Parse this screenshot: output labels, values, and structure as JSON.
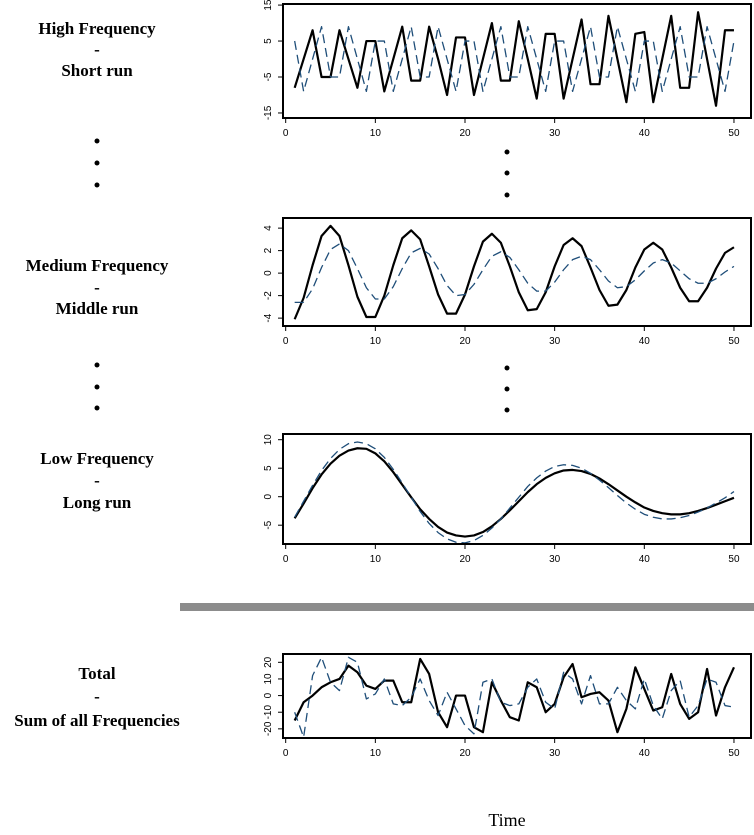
{
  "chart_data": [
    {
      "type": "line",
      "title": [
        "High Frequency",
        "-",
        "Short run"
      ],
      "x": [
        1,
        2,
        3,
        4,
        5,
        6,
        7,
        8,
        9,
        10,
        11,
        12,
        13,
        14,
        15,
        16,
        17,
        18,
        19,
        20,
        21,
        22,
        23,
        24,
        25,
        26,
        27,
        28,
        29,
        30,
        31,
        32,
        33,
        34,
        35,
        36,
        37,
        38,
        39,
        40,
        41,
        42,
        43,
        44,
        45,
        46,
        47,
        48,
        49,
        50
      ],
      "series": [
        {
          "color": "#000000",
          "style": "solid",
          "values": [
            -8,
            0,
            8,
            -5,
            -5,
            8,
            0,
            -8,
            5,
            5,
            -9,
            0,
            9,
            -6,
            -6,
            9,
            0,
            -10,
            6,
            6,
            -10,
            0,
            10,
            -6,
            -6,
            10.5,
            0,
            -11,
            7,
            7,
            -11,
            0,
            11,
            -7,
            -7,
            12,
            0,
            -12,
            7,
            7.5,
            -12,
            0,
            12,
            -8,
            -8,
            13,
            0,
            -13,
            8,
            8
          ]
        },
        {
          "color": "#1f4e79",
          "style": "dashed",
          "values": [
            5,
            -9,
            0,
            9,
            -5,
            -5,
            9,
            0,
            -9,
            5,
            5,
            -9,
            0,
            9,
            -5,
            -5,
            9,
            0,
            -9,
            5,
            5,
            -9,
            0,
            9,
            -5,
            -5,
            9,
            0,
            -9,
            5,
            5,
            -9,
            0,
            9,
            -5,
            -5,
            9,
            0,
            -9,
            5,
            5,
            -9,
            0,
            9,
            -5,
            -5,
            9,
            0,
            -9,
            5
          ]
        }
      ],
      "xlim": [
        -0.3,
        51.9
      ],
      "xticks": [
        0,
        10,
        20,
        30,
        40,
        50
      ],
      "ylim": [
        -16.4,
        15.3
      ],
      "yticks": [
        -15,
        -5,
        5,
        15
      ]
    },
    {
      "type": "line",
      "title": [
        "Medium Frequency",
        "-",
        "Middle run"
      ],
      "x": [
        1,
        2,
        3,
        4,
        5,
        6,
        7,
        8,
        9,
        10,
        11,
        12,
        13,
        14,
        15,
        16,
        17,
        18,
        19,
        20,
        21,
        22,
        23,
        24,
        25,
        26,
        27,
        28,
        29,
        30,
        31,
        32,
        33,
        34,
        35,
        36,
        37,
        38,
        39,
        40,
        41,
        42,
        43,
        44,
        45,
        46,
        47,
        48,
        49,
        50
      ],
      "series": [
        {
          "color": "#000000",
          "style": "solid",
          "values": [
            -4.1,
            -2.2,
            0.7,
            3.3,
            4.2,
            3.3,
            0.7,
            -2.1,
            -3.9,
            -3.9,
            -2.0,
            0.7,
            3.1,
            3.8,
            3.0,
            0.6,
            -1.9,
            -3.6,
            -3.6,
            -1.9,
            0.6,
            2.8,
            3.5,
            2.7,
            0.6,
            -1.7,
            -3.3,
            -3.2,
            -1.7,
            0.6,
            2.5,
            3.1,
            2.4,
            0.5,
            -1.5,
            -2.9,
            -2.8,
            -1.5,
            0.5,
            2.1,
            2.7,
            2.1,
            0.5,
            -1.3,
            -2.5,
            -2.5,
            -1.3,
            0.4,
            1.8,
            2.3
          ]
        },
        {
          "color": "#1f4e79",
          "style": "dashed",
          "values": [
            -2.6,
            -2.6,
            -1.4,
            0.5,
            2.1,
            2.6,
            2.0,
            0.4,
            -1.3,
            -2.3,
            -2.3,
            -1.2,
            0.4,
            1.8,
            2.2,
            1.7,
            0.4,
            -1.1,
            -2.0,
            -1.9,
            -1.0,
            0.3,
            1.5,
            1.9,
            1.4,
            0.3,
            -0.9,
            -1.6,
            -1.6,
            -0.8,
            0.3,
            1.2,
            1.5,
            1.2,
            0.3,
            -0.7,
            -1.3,
            -1.2,
            -0.6,
            0.2,
            0.9,
            1.2,
            0.9,
            0.2,
            -0.5,
            -0.9,
            -0.9,
            -0.5,
            0.1,
            0.6
          ]
        }
      ],
      "xlim": [
        -0.3,
        51.9
      ],
      "xticks": [
        0,
        10,
        20,
        30,
        40,
        50
      ],
      "ylim": [
        -4.7,
        4.9
      ],
      "yticks": [
        -4,
        -2,
        0,
        2,
        4
      ]
    },
    {
      "type": "line",
      "title": [
        "Low Frequency",
        "-",
        "Long run"
      ],
      "x": [
        1,
        2,
        3,
        4,
        5,
        6,
        7,
        8,
        9,
        10,
        11,
        12,
        13,
        14,
        15,
        16,
        17,
        18,
        19,
        20,
        21,
        22,
        23,
        24,
        25,
        26,
        27,
        28,
        29,
        30,
        31,
        32,
        33,
        34,
        35,
        36,
        37,
        38,
        39,
        40,
        41,
        42,
        43,
        44,
        45,
        46,
        47,
        48,
        49,
        50
      ],
      "series": [
        {
          "color": "#000000",
          "style": "solid",
          "values": [
            -3.8,
            -1.2,
            1.5,
            3.9,
            5.8,
            7.2,
            8.1,
            8.5,
            8.4,
            7.6,
            6.2,
            4.3,
            2.1,
            -0.1,
            -2.2,
            -3.9,
            -5.3,
            -6.3,
            -6.8,
            -7.0,
            -6.8,
            -6.2,
            -5.2,
            -3.9,
            -2.4,
            -0.8,
            0.8,
            2.2,
            3.3,
            4.1,
            4.6,
            4.7,
            4.5,
            4.0,
            3.2,
            2.2,
            1.1,
            0.0,
            -1.0,
            -1.9,
            -2.5,
            -2.9,
            -3.1,
            -3.1,
            -2.9,
            -2.5,
            -2.0,
            -1.4,
            -0.8,
            -0.2
          ]
        },
        {
          "color": "#1f4e79",
          "style": "dashed",
          "values": [
            -3.6,
            -0.8,
            2.0,
            4.6,
            6.7,
            8.3,
            9.3,
            9.6,
            9.3,
            8.4,
            6.9,
            4.8,
            2.4,
            -0.1,
            -2.6,
            -4.7,
            -6.3,
            -7.4,
            -8.0,
            -8.1,
            -7.7,
            -6.8,
            -5.5,
            -3.9,
            -2.0,
            -0.1,
            1.8,
            3.3,
            4.5,
            5.3,
            5.6,
            5.5,
            5.0,
            4.1,
            2.9,
            1.6,
            0.2,
            -1.1,
            -2.2,
            -3.1,
            -3.6,
            -3.9,
            -3.9,
            -3.7,
            -3.3,
            -2.7,
            -2.0,
            -1.1,
            -0.2,
            0.9
          ]
        }
      ],
      "xlim": [
        -0.3,
        51.9
      ],
      "xticks": [
        0,
        10,
        20,
        30,
        40,
        50
      ],
      "ylim": [
        -8.3,
        11
      ],
      "yticks": [
        -5,
        0,
        5,
        10
      ]
    },
    {
      "type": "line",
      "title": [
        "Total",
        "-",
        "Sum of all Frequencies"
      ],
      "xlabel": "Time",
      "x": [
        1,
        2,
        3,
        4,
        5,
        6,
        7,
        8,
        9,
        10,
        11,
        12,
        13,
        14,
        15,
        16,
        17,
        18,
        19,
        20,
        21,
        22,
        23,
        24,
        25,
        26,
        27,
        28,
        29,
        30,
        31,
        32,
        33,
        34,
        35,
        36,
        37,
        38,
        39,
        40,
        41,
        42,
        43,
        44,
        45,
        46,
        47,
        48,
        49,
        50
      ],
      "series": [
        {
          "color": "#000000",
          "style": "solid",
          "values": [
            -15,
            -4,
            0,
            5,
            8,
            10,
            18,
            14,
            6,
            4,
            9,
            9,
            -4,
            -4,
            22,
            13,
            -10,
            -19,
            0,
            0,
            -19,
            -22,
            8,
            -3,
            -13,
            -15,
            8,
            5,
            -10,
            -5,
            11,
            19,
            -1,
            1,
            2,
            -3,
            -22,
            -8,
            17,
            4,
            -9,
            -7,
            13,
            -5,
            -14,
            -10,
            16,
            -12,
            5,
            17
          ]
        },
        {
          "color": "#1f4e79",
          "style": "dashed",
          "values": [
            -10,
            -25,
            12,
            23,
            8,
            3,
            23,
            20,
            -2,
            1,
            10,
            -5,
            -6,
            -1,
            10,
            -3,
            -12,
            2,
            -8,
            -18,
            -23,
            8,
            10,
            -4,
            -6,
            -5,
            5,
            10,
            -4,
            -8,
            14,
            10,
            -5,
            12,
            -5,
            -5,
            5,
            -3,
            -8,
            10,
            -6,
            -14,
            3,
            9,
            -13,
            -6,
            10,
            8,
            -6,
            -7
          ]
        }
      ],
      "xlim": [
        -0.3,
        51.9
      ],
      "xticks": [
        0,
        10,
        20,
        30,
        40,
        50
      ],
      "ylim": [
        -25.5,
        25
      ],
      "yticks": [
        -20,
        -10,
        0,
        10,
        20
      ]
    }
  ]
}
